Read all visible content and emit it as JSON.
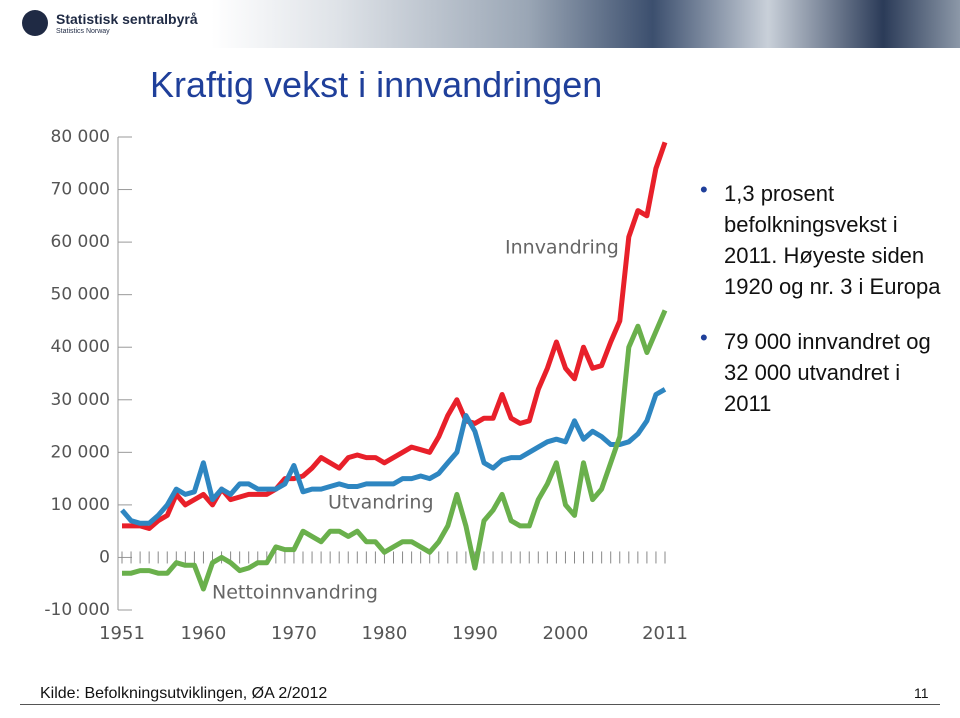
{
  "header": {
    "logo_name": "Statistisk sentralbyrå",
    "logo_subname": "Statistics Norway"
  },
  "title": "Kraftig vekst i innvandringen",
  "bullets": [
    "1,3 prosent befolkningsvekst i 2011. Høyeste siden 1920 og nr. 3 i Europa",
    "79 000 innvandret og 32 000 utvandret i 2011"
  ],
  "footer": {
    "source": "Kilde: Befolkningsutviklingen, ØA 2/2012",
    "page": "11"
  },
  "chart_data": {
    "type": "line",
    "x": [
      1951,
      1952,
      1953,
      1954,
      1955,
      1956,
      1957,
      1958,
      1959,
      1960,
      1961,
      1962,
      1963,
      1964,
      1965,
      1966,
      1967,
      1968,
      1969,
      1970,
      1971,
      1972,
      1973,
      1974,
      1975,
      1976,
      1977,
      1978,
      1979,
      1980,
      1981,
      1982,
      1983,
      1984,
      1985,
      1986,
      1987,
      1988,
      1989,
      1990,
      1991,
      1992,
      1993,
      1994,
      1995,
      1996,
      1997,
      1998,
      1999,
      2000,
      2001,
      2002,
      2003,
      2004,
      2005,
      2006,
      2007,
      2008,
      2009,
      2010,
      2011
    ],
    "xlim": [
      1951,
      2011
    ],
    "xticks": [
      1951,
      1960,
      1970,
      1980,
      1990,
      2000,
      2011
    ],
    "ylim": [
      -10000,
      80000
    ],
    "yticks": [
      {
        "value": -10000,
        "label": "-10 000"
      },
      0,
      {
        "value": 10000,
        "label": "10 000"
      },
      {
        "value": 20000,
        "label": "20 000"
      },
      {
        "value": 30000,
        "label": "30 000"
      },
      {
        "value": 40000,
        "label": "40 000"
      },
      {
        "value": 50000,
        "label": "50 000"
      },
      {
        "value": 60000,
        "label": "60 000"
      },
      {
        "value": 70000,
        "label": "70 000"
      },
      {
        "value": 80000,
        "label": "80 000"
      }
    ],
    "series": [
      {
        "name": "Innvandring",
        "color": "#e8202a",
        "values": [
          6000,
          6000,
          6000,
          5500,
          7000,
          8000,
          12000,
          10000,
          11000,
          12000,
          10000,
          13000,
          11000,
          11500,
          12000,
          12000,
          12000,
          13000,
          15000,
          15000,
          15500,
          17000,
          19000,
          18000,
          17000,
          19000,
          19500,
          19000,
          19000,
          18000,
          19000,
          20000,
          21000,
          20500,
          20000,
          23000,
          27000,
          30000,
          26000,
          25500,
          26500,
          26500,
          31000,
          26500,
          25500,
          26000,
          32000,
          36000,
          41000,
          36000,
          34000,
          40000,
          36000,
          36500,
          41000,
          45000,
          61000,
          66000,
          65000,
          74000,
          79000
        ]
      },
      {
        "name": "Utvandring",
        "color": "#2e86c1",
        "values": [
          9000,
          7000,
          6500,
          6500,
          8000,
          10000,
          13000,
          12000,
          12500,
          18000,
          11000,
          13000,
          12000,
          14000,
          14000,
          13000,
          13000,
          13000,
          14000,
          17500,
          12500,
          13000,
          13000,
          13500,
          14000,
          13500,
          13500,
          14000,
          14000,
          14000,
          14000,
          15000,
          15000,
          15500,
          15000,
          16000,
          18000,
          20000,
          27000,
          24000,
          18000,
          17000,
          18500,
          19000,
          19000,
          20000,
          21000,
          22000,
          22500,
          22000,
          26000,
          22500,
          24000,
          23000,
          21500,
          21500,
          22000,
          23500,
          26000,
          31000,
          32000
        ]
      },
      {
        "name": "Nettoinnvandring",
        "color": "#6ab04c",
        "values": [
          -3000,
          -3000,
          -2500,
          -2500,
          -3000,
          -3000,
          -1000,
          -1500,
          -1500,
          -6000,
          -1000,
          0,
          -1000,
          -2500,
          -2000,
          -1000,
          -1000,
          2000,
          1500,
          1500,
          5000,
          4000,
          3000,
          5000,
          5000,
          4000,
          5000,
          3000,
          3000,
          1000,
          2000,
          3000,
          3000,
          2000,
          1000,
          3000,
          6000,
          12000,
          6000,
          -2000,
          7000,
          9000,
          12000,
          7000,
          6000,
          6000,
          11000,
          14000,
          18000,
          10000,
          8000,
          18000,
          11000,
          13000,
          18000,
          23000,
          40000,
          44000,
          39000,
          43000,
          47000
        ]
      }
    ]
  }
}
